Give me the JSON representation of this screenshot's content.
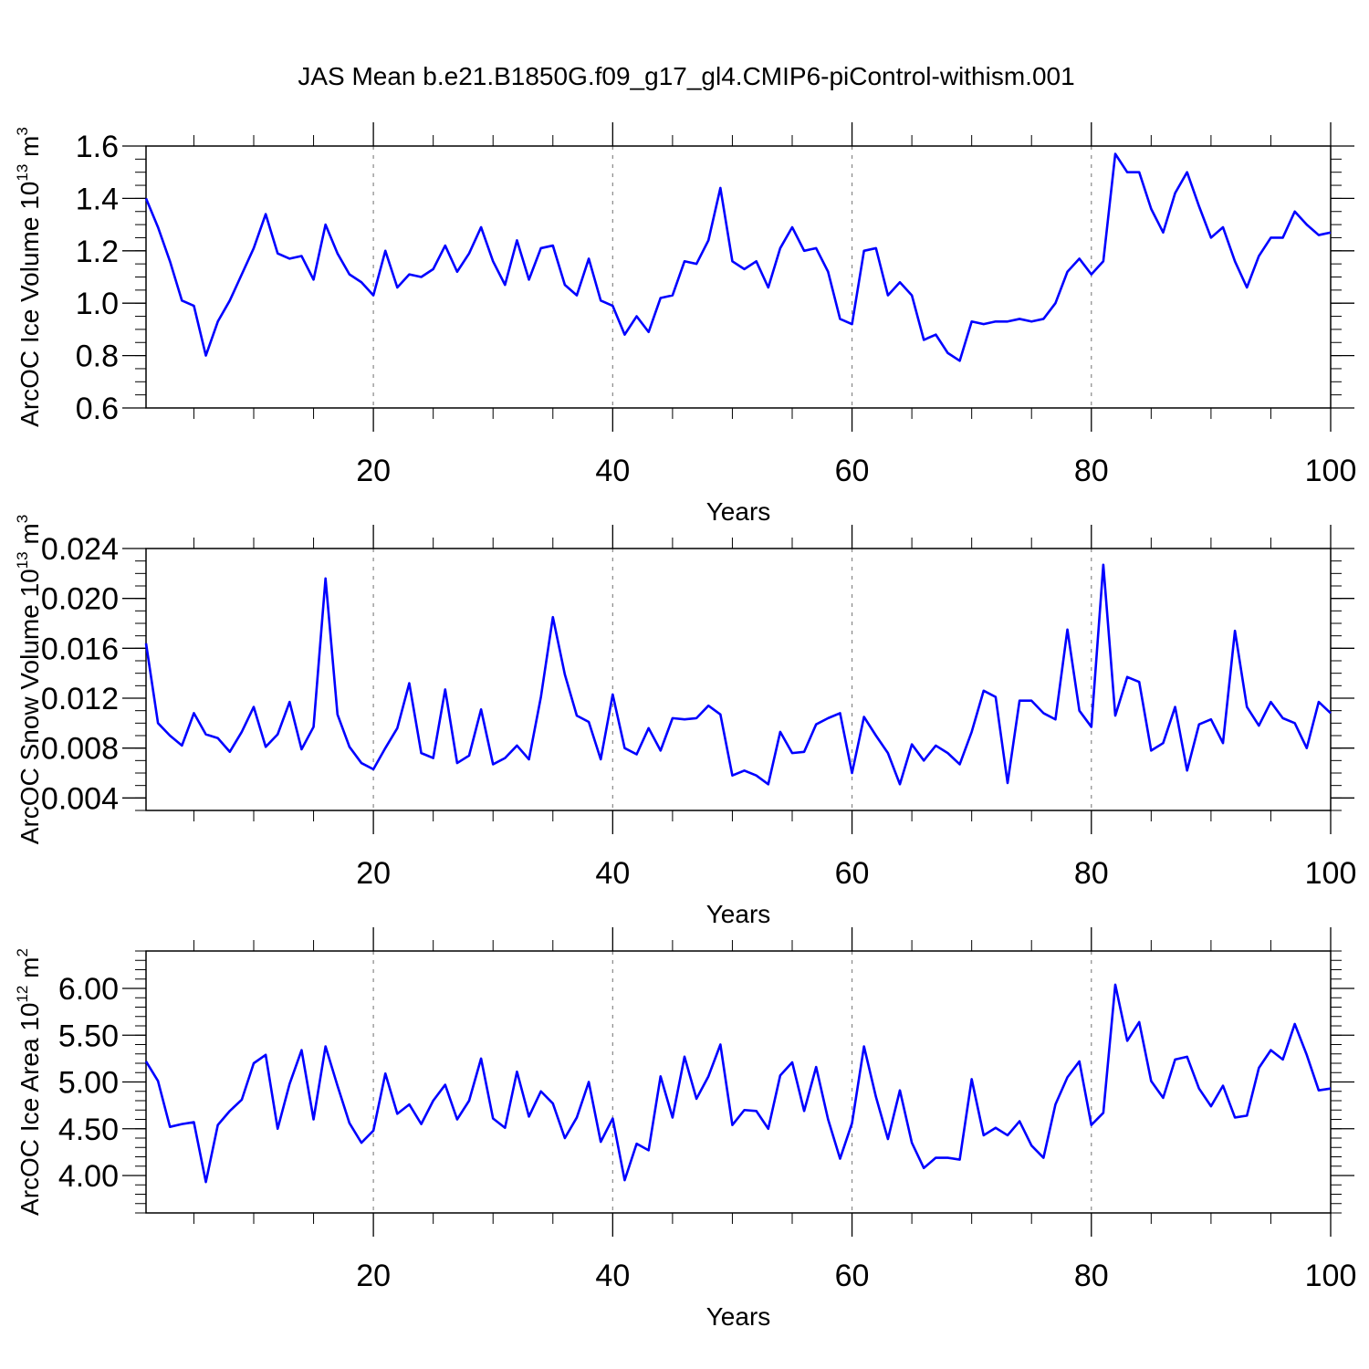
{
  "figure_title": "JAS Mean b.e21.B1850G.f09_g17_gl4.CMIP6-piControl-withism.001",
  "colors": {
    "line": "#0000ff",
    "axis": "#000000",
    "grid": "#888888"
  },
  "chart_data": [
    {
      "type": "line",
      "ylabel": "ArcOC Ice Volume 10",
      "ylabel_sup": "13",
      "ylabel_unit": "m",
      "ylabel_unit_sup": "3",
      "xlabel": "Years",
      "xlim": [
        1,
        100
      ],
      "ylim": [
        0.6,
        1.6
      ],
      "xticks": [
        20,
        40,
        60,
        80,
        100
      ],
      "xtick_labels": [
        "20",
        "40",
        "60",
        "80",
        "100"
      ],
      "yticks": [
        0.6,
        0.8,
        1.0,
        1.2,
        1.4,
        1.6
      ],
      "ytick_labels": [
        "0.6",
        "0.8",
        "1.0",
        "1.2",
        "1.4",
        "1.6"
      ],
      "yminor_step": 0.05,
      "grid_x": [
        20,
        40,
        60,
        80
      ],
      "series": [
        {
          "name": "Ice Volume",
          "values": [
            1.4,
            1.29,
            1.16,
            1.01,
            0.99,
            0.8,
            0.93,
            1.01,
            1.11,
            1.21,
            1.34,
            1.19,
            1.17,
            1.18,
            1.09,
            1.3,
            1.19,
            1.11,
            1.08,
            1.03,
            1.2,
            1.06,
            1.11,
            1.1,
            1.13,
            1.22,
            1.12,
            1.19,
            1.29,
            1.16,
            1.07,
            1.24,
            1.09,
            1.21,
            1.22,
            1.07,
            1.03,
            1.17,
            1.01,
            0.99,
            0.88,
            0.95,
            0.89,
            1.02,
            1.03,
            1.16,
            1.15,
            1.24,
            1.44,
            1.16,
            1.13,
            1.16,
            1.06,
            1.21,
            1.29,
            1.2,
            1.21,
            1.12,
            0.94,
            0.92,
            1.2,
            1.21,
            1.03,
            1.08,
            1.03,
            0.86,
            0.88,
            0.81,
            0.78,
            0.93,
            0.92,
            0.93,
            0.93,
            0.94,
            0.93,
            0.94,
            1.0,
            1.12,
            1.17,
            1.11,
            1.16,
            1.57,
            1.5,
            1.5,
            1.36,
            1.27,
            1.42,
            1.5,
            1.37,
            1.25,
            1.29,
            1.16,
            1.06,
            1.18,
            1.25,
            1.25,
            1.35,
            1.3,
            1.26,
            1.27
          ]
        }
      ]
    },
    {
      "type": "line",
      "ylabel": "ArcOC Snow Volume 10",
      "ylabel_sup": "13",
      "ylabel_unit": "m",
      "ylabel_unit_sup": "3",
      "xlabel": "Years",
      "xlim": [
        1,
        100
      ],
      "ylim": [
        0.003,
        0.024
      ],
      "xticks": [
        20,
        40,
        60,
        80,
        100
      ],
      "xtick_labels": [
        "20",
        "40",
        "60",
        "80",
        "100"
      ],
      "yticks": [
        0.004,
        0.008,
        0.012,
        0.016,
        0.02,
        0.024
      ],
      "ytick_labels": [
        "0.004",
        "0.008",
        "0.012",
        "0.016",
        "0.020",
        "0.024"
      ],
      "yminor_step": 0.001,
      "grid_x": [
        20,
        40,
        60,
        80
      ],
      "series": [
        {
          "name": "Snow Volume",
          "values": [
            0.0164,
            0.01,
            0.009,
            0.0082,
            0.0108,
            0.0091,
            0.0088,
            0.0077,
            0.0093,
            0.0113,
            0.0081,
            0.0091,
            0.0117,
            0.0079,
            0.0097,
            0.0216,
            0.0107,
            0.0081,
            0.0068,
            0.0063,
            0.008,
            0.0096,
            0.0132,
            0.0076,
            0.0072,
            0.0127,
            0.0068,
            0.0074,
            0.0111,
            0.0067,
            0.0072,
            0.0082,
            0.0071,
            0.0121,
            0.0185,
            0.0139,
            0.0106,
            0.0101,
            0.0071,
            0.0123,
            0.008,
            0.0075,
            0.0096,
            0.0078,
            0.0104,
            0.0103,
            0.0104,
            0.0114,
            0.0107,
            0.0058,
            0.0062,
            0.0058,
            0.0051,
            0.0093,
            0.0076,
            0.0077,
            0.0099,
            0.0104,
            0.0108,
            0.006,
            0.0105,
            0.009,
            0.0076,
            0.0051,
            0.0083,
            0.007,
            0.0082,
            0.0076,
            0.0067,
            0.0093,
            0.0126,
            0.0121,
            0.0052,
            0.0118,
            0.0118,
            0.0108,
            0.0103,
            0.0175,
            0.011,
            0.0097,
            0.0227,
            0.0106,
            0.0137,
            0.0133,
            0.0078,
            0.0084,
            0.0113,
            0.0062,
            0.0099,
            0.0103,
            0.0084,
            0.0174,
            0.0113,
            0.0098,
            0.0117,
            0.0104,
            0.01,
            0.008,
            0.0117,
            0.0108
          ]
        }
      ]
    },
    {
      "type": "line",
      "ylabel": "ArcOC Ice Area 10",
      "ylabel_sup": "12",
      "ylabel_unit": "m",
      "ylabel_unit_sup": "2",
      "xlabel": "Years",
      "xlim": [
        1,
        100
      ],
      "ylim": [
        3.6,
        6.4
      ],
      "xticks": [
        20,
        40,
        60,
        80,
        100
      ],
      "xtick_labels": [
        "20",
        "40",
        "60",
        "80",
        "100"
      ],
      "yticks": [
        4.0,
        4.5,
        5.0,
        5.5,
        6.0
      ],
      "ytick_labels": [
        "4.00",
        "4.50",
        "5.00",
        "5.50",
        "6.00"
      ],
      "yminor_step": 0.1,
      "grid_x": [
        20,
        40,
        60,
        80
      ],
      "series": [
        {
          "name": "Ice Area",
          "values": [
            5.22,
            5.01,
            4.52,
            4.55,
            4.57,
            3.93,
            4.54,
            4.69,
            4.81,
            5.2,
            5.29,
            4.5,
            4.98,
            5.34,
            4.6,
            5.38,
            4.96,
            4.56,
            4.35,
            4.48,
            5.09,
            4.66,
            4.76,
            4.55,
            4.8,
            4.97,
            4.6,
            4.8,
            5.25,
            4.61,
            4.51,
            5.11,
            4.63,
            4.9,
            4.77,
            4.4,
            4.62,
            5.0,
            4.36,
            4.61,
            3.95,
            4.34,
            4.27,
            5.06,
            4.62,
            5.27,
            4.82,
            5.06,
            5.4,
            4.54,
            4.7,
            4.69,
            4.5,
            5.07,
            5.21,
            4.69,
            5.16,
            4.6,
            4.18,
            4.56,
            5.38,
            4.84,
            4.39,
            4.91,
            4.35,
            4.08,
            4.19,
            4.19,
            4.17,
            5.03,
            4.43,
            4.51,
            4.43,
            4.58,
            4.32,
            4.19,
            4.76,
            5.05,
            5.22,
            4.54,
            4.67,
            6.04,
            5.44,
            5.64,
            5.01,
            4.83,
            5.24,
            5.27,
            4.93,
            4.74,
            4.96,
            4.62,
            4.64,
            5.15,
            5.34,
            5.24,
            5.62,
            5.29,
            4.91,
            4.93
          ]
        }
      ]
    }
  ]
}
